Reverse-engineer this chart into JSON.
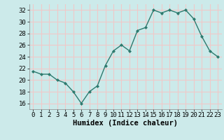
{
  "x": [
    0,
    1,
    2,
    3,
    4,
    5,
    6,
    7,
    8,
    9,
    10,
    11,
    12,
    13,
    14,
    15,
    16,
    17,
    18,
    19,
    20,
    21,
    22,
    23
  ],
  "y": [
    21.5,
    21.0,
    21.0,
    20.0,
    19.5,
    18.0,
    16.0,
    18.0,
    19.0,
    22.5,
    25.0,
    26.0,
    25.0,
    28.5,
    29.0,
    32.0,
    31.5,
    32.0,
    31.5,
    32.0,
    30.5,
    27.5,
    25.0,
    24.0
  ],
  "line_color": "#2d7a6e",
  "marker": "D",
  "marker_size": 2.0,
  "xlabel": "Humidex (Indice chaleur)",
  "ylim": [
    15,
    33
  ],
  "xlim": [
    -0.5,
    23.5
  ],
  "yticks": [
    16,
    18,
    20,
    22,
    24,
    26,
    28,
    30,
    32
  ],
  "xticks": [
    0,
    1,
    2,
    3,
    4,
    5,
    6,
    7,
    8,
    9,
    10,
    11,
    12,
    13,
    14,
    15,
    16,
    17,
    18,
    19,
    20,
    21,
    22,
    23
  ],
  "bg_color": "#cceaea",
  "grid_color": "#f0c8c8",
  "xlabel_fontsize": 7.5,
  "tick_fontsize": 6.5,
  "linewidth": 1.0
}
